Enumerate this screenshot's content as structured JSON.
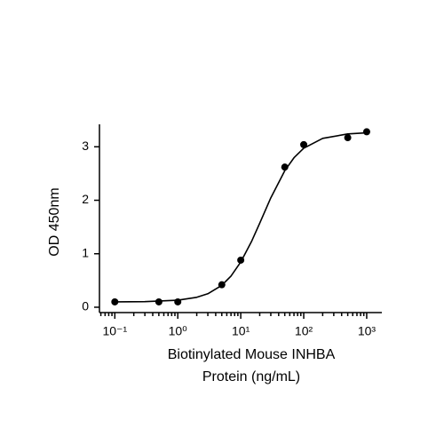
{
  "chart_data": {
    "type": "scatter",
    "xlabel": "Biotinylated Mouse INHBA Protein (ng/mL)",
    "ylabel": "OD 450nm",
    "xscale": "log",
    "points": {
      "color": "#000000",
      "x": [
        0.1,
        0.5,
        1,
        5,
        10,
        50,
        100,
        500,
        1000
      ],
      "y": [
        0.1,
        0.1,
        0.1,
        0.42,
        0.88,
        2.62,
        3.04,
        3.17,
        3.28
      ]
    },
    "fit": {
      "color": "#000000",
      "x": [
        0.1,
        0.3,
        1,
        2,
        3,
        5,
        7,
        10,
        15,
        20,
        30,
        50,
        70,
        100,
        200,
        500,
        1000
      ],
      "y": [
        0.101,
        0.105,
        0.131,
        0.185,
        0.252,
        0.41,
        0.582,
        0.844,
        1.242,
        1.572,
        2.047,
        2.553,
        2.796,
        2.974,
        3.158,
        3.24,
        3.26
      ]
    },
    "xlim": [
      0.057,
      1740
    ],
    "ylim": [
      -0.1,
      3.42
    ],
    "xticks": [
      {
        "value": 0.1,
        "label": "10⁻¹"
      },
      {
        "value": 1,
        "label": "10⁰"
      },
      {
        "value": 10,
        "label": "10¹"
      },
      {
        "value": 100,
        "label": "10²"
      },
      {
        "value": 1000,
        "label": "10³"
      }
    ],
    "yticks": [
      0,
      1,
      2,
      3
    ]
  }
}
